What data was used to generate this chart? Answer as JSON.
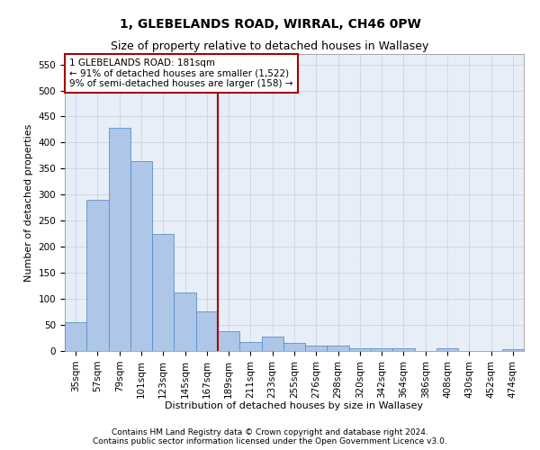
{
  "title": "1, GLEBELANDS ROAD, WIRRAL, CH46 0PW",
  "subtitle": "Size of property relative to detached houses in Wallasey",
  "xlabel": "Distribution of detached houses by size in Wallasey",
  "ylabel": "Number of detached properties",
  "footer1": "Contains HM Land Registry data © Crown copyright and database right 2024.",
  "footer2": "Contains public sector information licensed under the Open Government Licence v3.0.",
  "annotation_line1": "1 GLEBELANDS ROAD: 181sqm",
  "annotation_line2": "← 91% of detached houses are smaller (1,522)",
  "annotation_line3": "9% of semi-detached houses are larger (158) →",
  "bar_labels": [
    "35sqm",
    "57sqm",
    "79sqm",
    "101sqm",
    "123sqm",
    "145sqm",
    "167sqm",
    "189sqm",
    "211sqm",
    "233sqm",
    "255sqm",
    "276sqm",
    "298sqm",
    "320sqm",
    "342sqm",
    "364sqm",
    "386sqm",
    "408sqm",
    "430sqm",
    "452sqm",
    "474sqm"
  ],
  "bar_values": [
    55,
    290,
    428,
    365,
    225,
    113,
    76,
    38,
    17,
    27,
    15,
    10,
    10,
    6,
    5,
    5,
    0,
    5,
    0,
    0,
    4
  ],
  "bar_color": "#aec6e8",
  "bar_edge_color": "#5b8fc9",
  "vline_color": "#aa0000",
  "ylim": [
    0,
    570
  ],
  "yticks": [
    0,
    50,
    100,
    150,
    200,
    250,
    300,
    350,
    400,
    450,
    500,
    550
  ],
  "background_color": "#ffffff",
  "plot_bg_color": "#e8eef8",
  "grid_color": "#c8d4e0",
  "title_fontsize": 10,
  "subtitle_fontsize": 9,
  "axis_label_fontsize": 8,
  "tick_fontsize": 7.5,
  "annotation_fontsize": 7.5,
  "footer_fontsize": 6.5,
  "vline_index": 7
}
